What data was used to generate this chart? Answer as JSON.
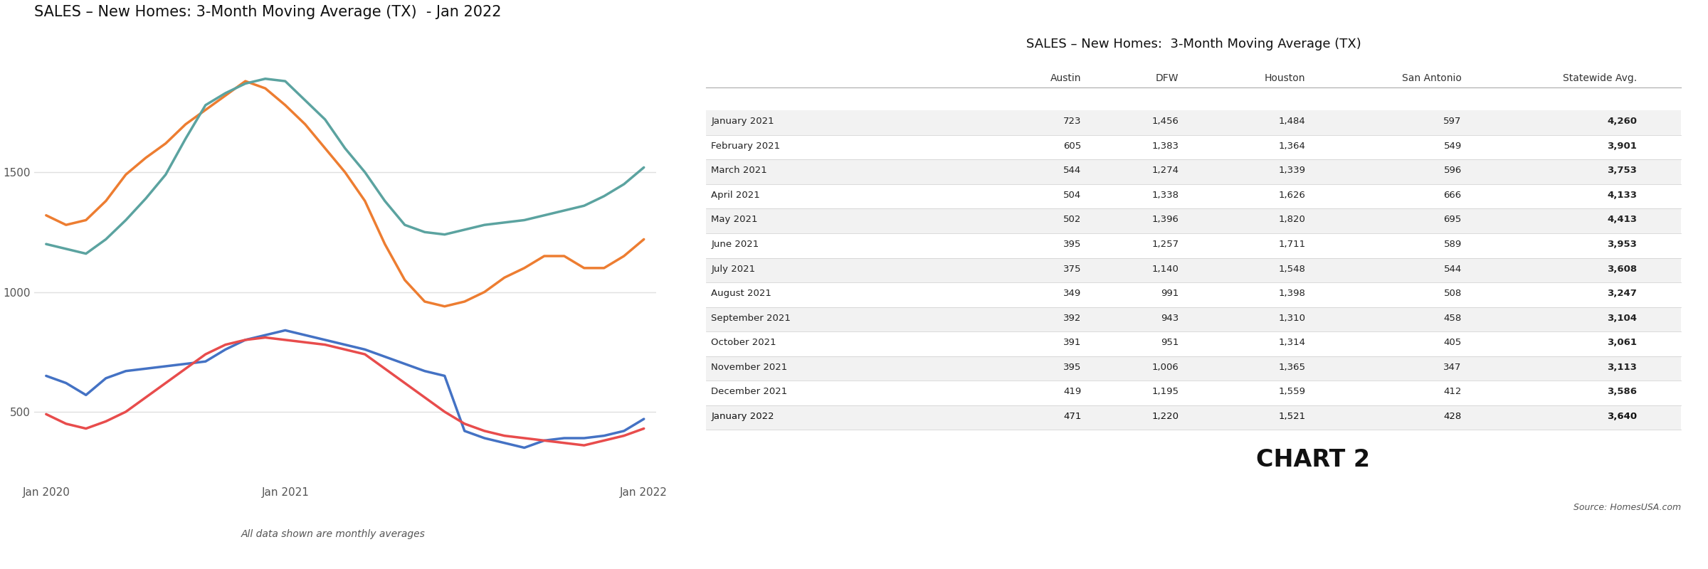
{
  "chart_title": "SALES – New Homes: 3-Month Moving Average (TX)  - Jan 2022",
  "table_title": "SALES – New Homes:  3-Month Moving Average (TX)",
  "subtitle": "All data shown are monthly averages",
  "chart2_label": "CHART 2",
  "source": "Source: HomesUSA.com",
  "x_labels": [
    "Jan 2020",
    "Jan 2021",
    "Jan 2022"
  ],
  "series": {
    "Austin": {
      "color": "#4472c4",
      "values": [
        650,
        620,
        570,
        640,
        670,
        680,
        690,
        700,
        710,
        760,
        800,
        820,
        840,
        820,
        800,
        780,
        760,
        730,
        700,
        670,
        650,
        420,
        390,
        370,
        350,
        380,
        390,
        390,
        400,
        420,
        470
      ]
    },
    "DFW": {
      "color": "#ed7d31",
      "values": [
        1320,
        1280,
        1300,
        1380,
        1490,
        1560,
        1620,
        1700,
        1760,
        1820,
        1880,
        1850,
        1780,
        1700,
        1600,
        1500,
        1380,
        1200,
        1050,
        960,
        940,
        960,
        1000,
        1060,
        1100,
        1150,
        1150,
        1100,
        1100,
        1150,
        1220
      ]
    },
    "Houston": {
      "color": "#5ba3a0",
      "values": [
        1200,
        1180,
        1160,
        1220,
        1300,
        1390,
        1490,
        1640,
        1780,
        1830,
        1870,
        1890,
        1880,
        1800,
        1720,
        1600,
        1500,
        1380,
        1280,
        1250,
        1240,
        1260,
        1280,
        1290,
        1300,
        1320,
        1340,
        1360,
        1400,
        1450,
        1520
      ]
    },
    "San Antonio": {
      "color": "#e84c4c",
      "values": [
        490,
        450,
        430,
        460,
        500,
        560,
        620,
        680,
        740,
        780,
        800,
        810,
        800,
        790,
        780,
        760,
        740,
        680,
        620,
        560,
        500,
        450,
        420,
        400,
        390,
        380,
        370,
        360,
        380,
        400,
        430
      ]
    }
  },
  "table_rows": [
    {
      "month": "January 2021",
      "Austin": 723,
      "DFW": 1456,
      "Houston": 1484,
      "San Antonio": 597,
      "Statewide Avg.": 4260
    },
    {
      "month": "February 2021",
      "Austin": 605,
      "DFW": 1383,
      "Houston": 1364,
      "San Antonio": 549,
      "Statewide Avg.": 3901
    },
    {
      "month": "March 2021",
      "Austin": 544,
      "DFW": 1274,
      "Houston": 1339,
      "San Antonio": 596,
      "Statewide Avg.": 3753
    },
    {
      "month": "April 2021",
      "Austin": 504,
      "DFW": 1338,
      "Houston": 1626,
      "San Antonio": 666,
      "Statewide Avg.": 4133
    },
    {
      "month": "May 2021",
      "Austin": 502,
      "DFW": 1396,
      "Houston": 1820,
      "San Antonio": 695,
      "Statewide Avg.": 4413
    },
    {
      "month": "June 2021",
      "Austin": 395,
      "DFW": 1257,
      "Houston": 1711,
      "San Antonio": 589,
      "Statewide Avg.": 3953
    },
    {
      "month": "July 2021",
      "Austin": 375,
      "DFW": 1140,
      "Houston": 1548,
      "San Antonio": 544,
      "Statewide Avg.": 3608
    },
    {
      "month": "August 2021",
      "Austin": 349,
      "DFW": 991,
      "Houston": 1398,
      "San Antonio": 508,
      "Statewide Avg.": 3247
    },
    {
      "month": "September 2021",
      "Austin": 392,
      "DFW": 943,
      "Houston": 1310,
      "San Antonio": 458,
      "Statewide Avg.": 3104
    },
    {
      "month": "October 2021",
      "Austin": 391,
      "DFW": 951,
      "Houston": 1314,
      "San Antonio": 405,
      "Statewide Avg.": 3061
    },
    {
      "month": "November 2021",
      "Austin": 395,
      "DFW": 1006,
      "Houston": 1365,
      "San Antonio": 347,
      "Statewide Avg.": 3113
    },
    {
      "month": "December 2021",
      "Austin": 419,
      "DFW": 1195,
      "Houston": 1559,
      "San Antonio": 412,
      "Statewide Avg.": 3586
    },
    {
      "month": "January 2022",
      "Austin": 471,
      "DFW": 1220,
      "Houston": 1521,
      "San Antonio": 428,
      "Statewide Avg.": 3640
    }
  ],
  "table_columns": [
    "",
    "Austin",
    "DFW",
    "Houston",
    "San Antonio",
    "Statewide Avg."
  ],
  "ylim": [
    200,
    2100
  ],
  "yticks": [
    500,
    1000,
    1500
  ],
  "bg_color": "#ffffff",
  "grid_color": "#e0e0e0",
  "tick_color": "#555555",
  "title_fontsize": 15,
  "table_title_fontsize": 13,
  "legend_fontsize": 11,
  "tick_fontsize": 11,
  "line_width": 2.5
}
